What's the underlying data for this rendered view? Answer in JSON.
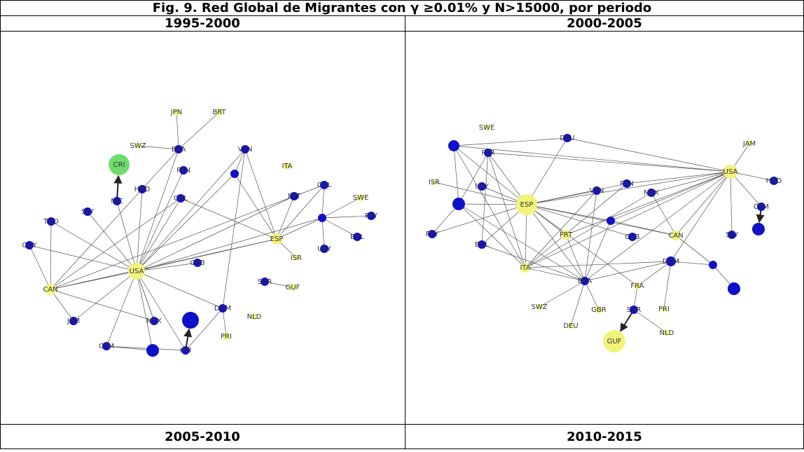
{
  "title": "Fig. 9.  Red Global de Migrantes  con γ ≥0.01% y N>15000, por periodo",
  "panels": [
    {
      "period": "1995-2000",
      "nodes": [
        "JPN",
        "BRT",
        "SWZ",
        "BRA",
        "VEN",
        "CRI",
        "ITA",
        "PAN",
        "HND",
        "NIC",
        "COL",
        "SWE",
        "SLV",
        "PRT",
        "PRY",
        "TGO",
        "CHL",
        "ESP",
        "BOL",
        "GUY",
        "URY",
        "ISR",
        "USA",
        "CUB",
        "CAN",
        "SUR",
        "GUF",
        "DOM",
        "NLD",
        "JAM",
        "MEX",
        "PRI",
        "GTM",
        "HTI"
      ]
    },
    {
      "period": "2000-2005",
      "nodes": [
        "SWE",
        "DEU",
        "JAM",
        "PER",
        "ISR",
        "URY",
        "ESP",
        "VEN",
        "PAN",
        "MEX",
        "USA",
        "HND",
        "GTM",
        "PRY",
        "PRT",
        "CUB",
        "CAN",
        "SLV",
        "BOL",
        "DOM",
        "ITA",
        "BRA",
        "FRA",
        "SWZ",
        "GBR",
        "SUR",
        "PRI",
        "DEU",
        "NLD",
        "GUF"
      ]
    }
  ],
  "bottom_headers": [
    "2005-2010",
    "2010-2015"
  ]
}
